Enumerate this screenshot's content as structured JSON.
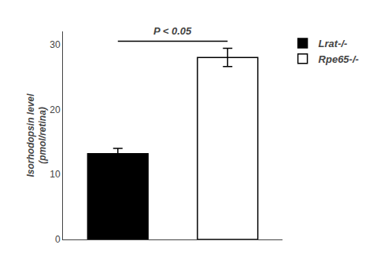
{
  "chart_data": {
    "type": "bar",
    "ylabel": "Isorhodopsin level\n(pmol/retina)",
    "categories": [
      null,
      null
    ],
    "series": [
      {
        "name": "Lrat-/-",
        "color": "#000000",
        "values": [
          13.2,
          null
        ],
        "errors": [
          0.8,
          null
        ]
      },
      {
        "name": "Rpe65-/-",
        "color": "#ffffff",
        "values": [
          null,
          28.0
        ],
        "errors": [
          null,
          1.4
        ]
      }
    ],
    "ylim": [
      0,
      32
    ],
    "yticks": [
      0,
      10,
      20,
      30
    ],
    "annotations": [
      {
        "text": "P < 0.05",
        "y": 30.5,
        "x": [
          0,
          1
        ]
      }
    ],
    "legend": "right",
    "grid": false,
    "tick_labels": "y"
  }
}
